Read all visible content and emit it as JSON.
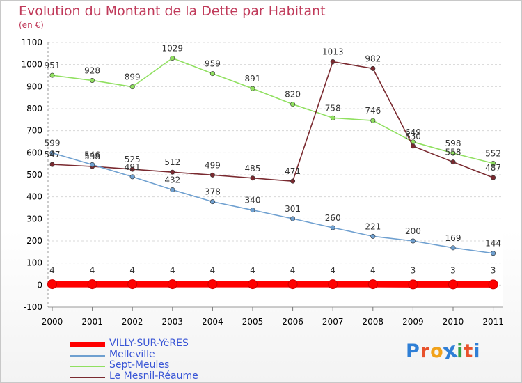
{
  "header": {
    "title": "Evolution du Montant de la Dette par Habitant",
    "subtitle": "(en €)"
  },
  "brand": {
    "text": "Proxiti",
    "colors": [
      "#2f7fd6",
      "#e8522c",
      "#f1a21b",
      "#2f7fd6",
      "#33a145",
      "#e8522c",
      "#2f7fd6"
    ]
  },
  "chart_data": {
    "type": "line",
    "title": "Evolution du Montant de la Dette par Habitant",
    "subtitle": "(en €)",
    "xlabel": "",
    "ylabel": "",
    "x": [
      "2000",
      "2001",
      "2002",
      "2003",
      "2004",
      "2005",
      "2006",
      "2007",
      "2008",
      "2009",
      "2010",
      "2011"
    ],
    "ylim": [
      -100,
      1100
    ],
    "yticks": [
      "-100",
      "0",
      "100",
      "200",
      "300",
      "400",
      "500",
      "600",
      "700",
      "800",
      "900",
      "1000",
      "1100"
    ],
    "grid": "horizontal dashed",
    "legend_position": "bottom-left",
    "series": [
      {
        "name": "VILLY-SUR-YèRES",
        "color": "#ff0000",
        "values": [
          4,
          4,
          4,
          4,
          4,
          4,
          4,
          4,
          4,
          3,
          3,
          3
        ],
        "labels": [
          "4",
          "4",
          "4",
          "4",
          "4",
          "4",
          "4",
          "4",
          "4",
          "3",
          "3",
          "3"
        ]
      },
      {
        "name": "Melleville",
        "color": "#6fa0d0",
        "values": [
          599,
          546,
          491,
          432,
          378,
          340,
          301,
          260,
          221,
          200,
          169,
          144
        ],
        "labels": [
          "599",
          "546",
          "491",
          "432",
          "378",
          "340",
          "301",
          "260",
          "221",
          "200",
          "169",
          "144"
        ]
      },
      {
        "name": "Sept-Meules",
        "color": "#90e060",
        "values": [
          951,
          928,
          899,
          1029,
          959,
          891,
          820,
          758,
          746,
          649,
          598,
          552
        ],
        "labels": [
          "951",
          "928",
          "899",
          "1029",
          "959",
          "891",
          "820",
          "758",
          "746",
          "649",
          "598",
          "552"
        ]
      },
      {
        "name": "Le Mesnil-Réaume",
        "color": "#7a2a30",
        "values": [
          547,
          538,
          525,
          512,
          499,
          485,
          471,
          1013,
          982,
          630,
          558,
          487
        ],
        "labels": [
          "547",
          "538",
          "525",
          "512",
          "499",
          "485",
          "471",
          "1013",
          "982",
          "630",
          "558",
          "487"
        ]
      }
    ]
  }
}
